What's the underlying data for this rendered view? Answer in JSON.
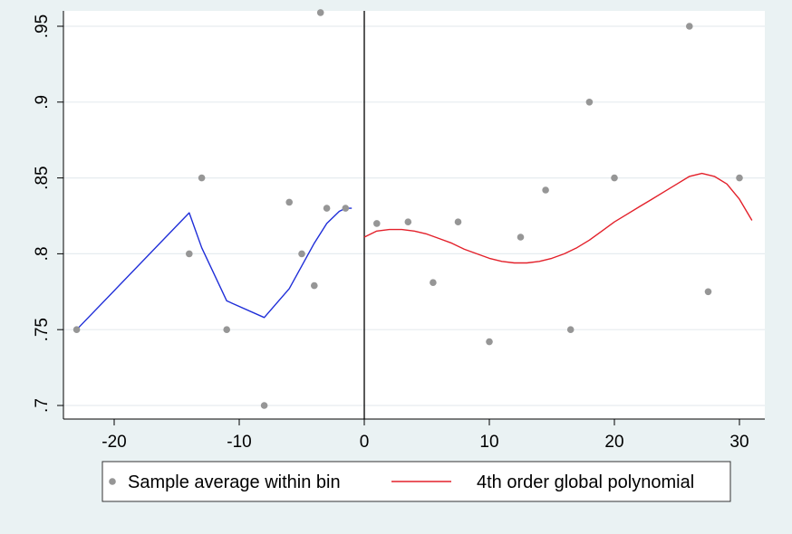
{
  "chart_data": {
    "type": "scatter",
    "title": "",
    "xlabel": "",
    "ylabel": "",
    "xlim": [
      -25,
      32
    ],
    "ylim": [
      0.69,
      0.958
    ],
    "x_ticks": [
      -20,
      -10,
      0,
      10,
      20,
      30
    ],
    "x_tick_labels": [
      "-20",
      "-10",
      "0",
      "10",
      "20",
      "30"
    ],
    "y_ticks": [
      0.7,
      0.75,
      0.8,
      0.85,
      0.9,
      0.95
    ],
    "y_tick_labels": [
      ".7",
      ".75",
      ".8",
      ".85",
      ".9",
      ".95"
    ],
    "grid": "horizontal",
    "cutoff_x": 0,
    "legend_position": "bottom",
    "colors": {
      "plot_background": "#ffffff",
      "outer_background": "#eaf2f3",
      "points": "#969696",
      "left_fit": "#1f2ed8",
      "right_fit": "#e3202a",
      "gridlines": "#e6ecef"
    },
    "scatter_points": [
      {
        "x": -23,
        "y": 0.75
      },
      {
        "x": -14,
        "y": 0.8
      },
      {
        "x": -13,
        "y": 0.85
      },
      {
        "x": -11,
        "y": 0.75
      },
      {
        "x": -8,
        "y": 0.7
      },
      {
        "x": -6,
        "y": 0.834
      },
      {
        "x": -5,
        "y": 0.8
      },
      {
        "x": -4,
        "y": 0.779
      },
      {
        "x": -3,
        "y": 0.83
      },
      {
        "x": -3.5,
        "y": 0.959
      },
      {
        "x": -1.5,
        "y": 0.83
      },
      {
        "x": 1,
        "y": 0.82
      },
      {
        "x": 3.5,
        "y": 0.821
      },
      {
        "x": 5.5,
        "y": 0.781
      },
      {
        "x": 7.5,
        "y": 0.821
      },
      {
        "x": 10,
        "y": 0.742
      },
      {
        "x": 12.5,
        "y": 0.811
      },
      {
        "x": 14.5,
        "y": 0.842
      },
      {
        "x": 16.5,
        "y": 0.75
      },
      {
        "x": 18,
        "y": 0.9
      },
      {
        "x": 20,
        "y": 0.85
      },
      {
        "x": 26,
        "y": 0.95
      },
      {
        "x": 27.5,
        "y": 0.775
      },
      {
        "x": 30,
        "y": 0.85
      }
    ],
    "series": [
      {
        "name": "Sample average within bin",
        "kind": "points"
      },
      {
        "name": "4th order global polynomial",
        "kind": "line",
        "segments": [
          {
            "side": "left",
            "x": [
              -23,
              -14,
              -13,
              -11,
              -8,
              -6,
              -5,
              -4,
              -3,
              -2,
              -1.5,
              -1
            ],
            "y": [
              0.75,
              0.827,
              0.804,
              0.769,
              0.758,
              0.777,
              0.792,
              0.807,
              0.82,
              0.828,
              0.83,
              0.83
            ]
          },
          {
            "side": "right",
            "x": [
              0,
              1,
              2,
              3,
              4,
              5,
              6,
              7,
              8,
              9,
              10,
              11,
              12,
              13,
              14,
              15,
              16,
              17,
              18,
              19,
              20,
              21,
              22,
              23,
              24,
              25,
              26,
              27,
              28,
              29,
              30,
              31
            ],
            "y": [
              0.811,
              0.815,
              0.816,
              0.816,
              0.815,
              0.813,
              0.81,
              0.807,
              0.803,
              0.8,
              0.797,
              0.795,
              0.794,
              0.794,
              0.795,
              0.797,
              0.8,
              0.804,
              0.809,
              0.815,
              0.821,
              0.826,
              0.831,
              0.836,
              0.841,
              0.846,
              0.851,
              0.853,
              0.851,
              0.846,
              0.836,
              0.822
            ]
          }
        ]
      }
    ]
  }
}
